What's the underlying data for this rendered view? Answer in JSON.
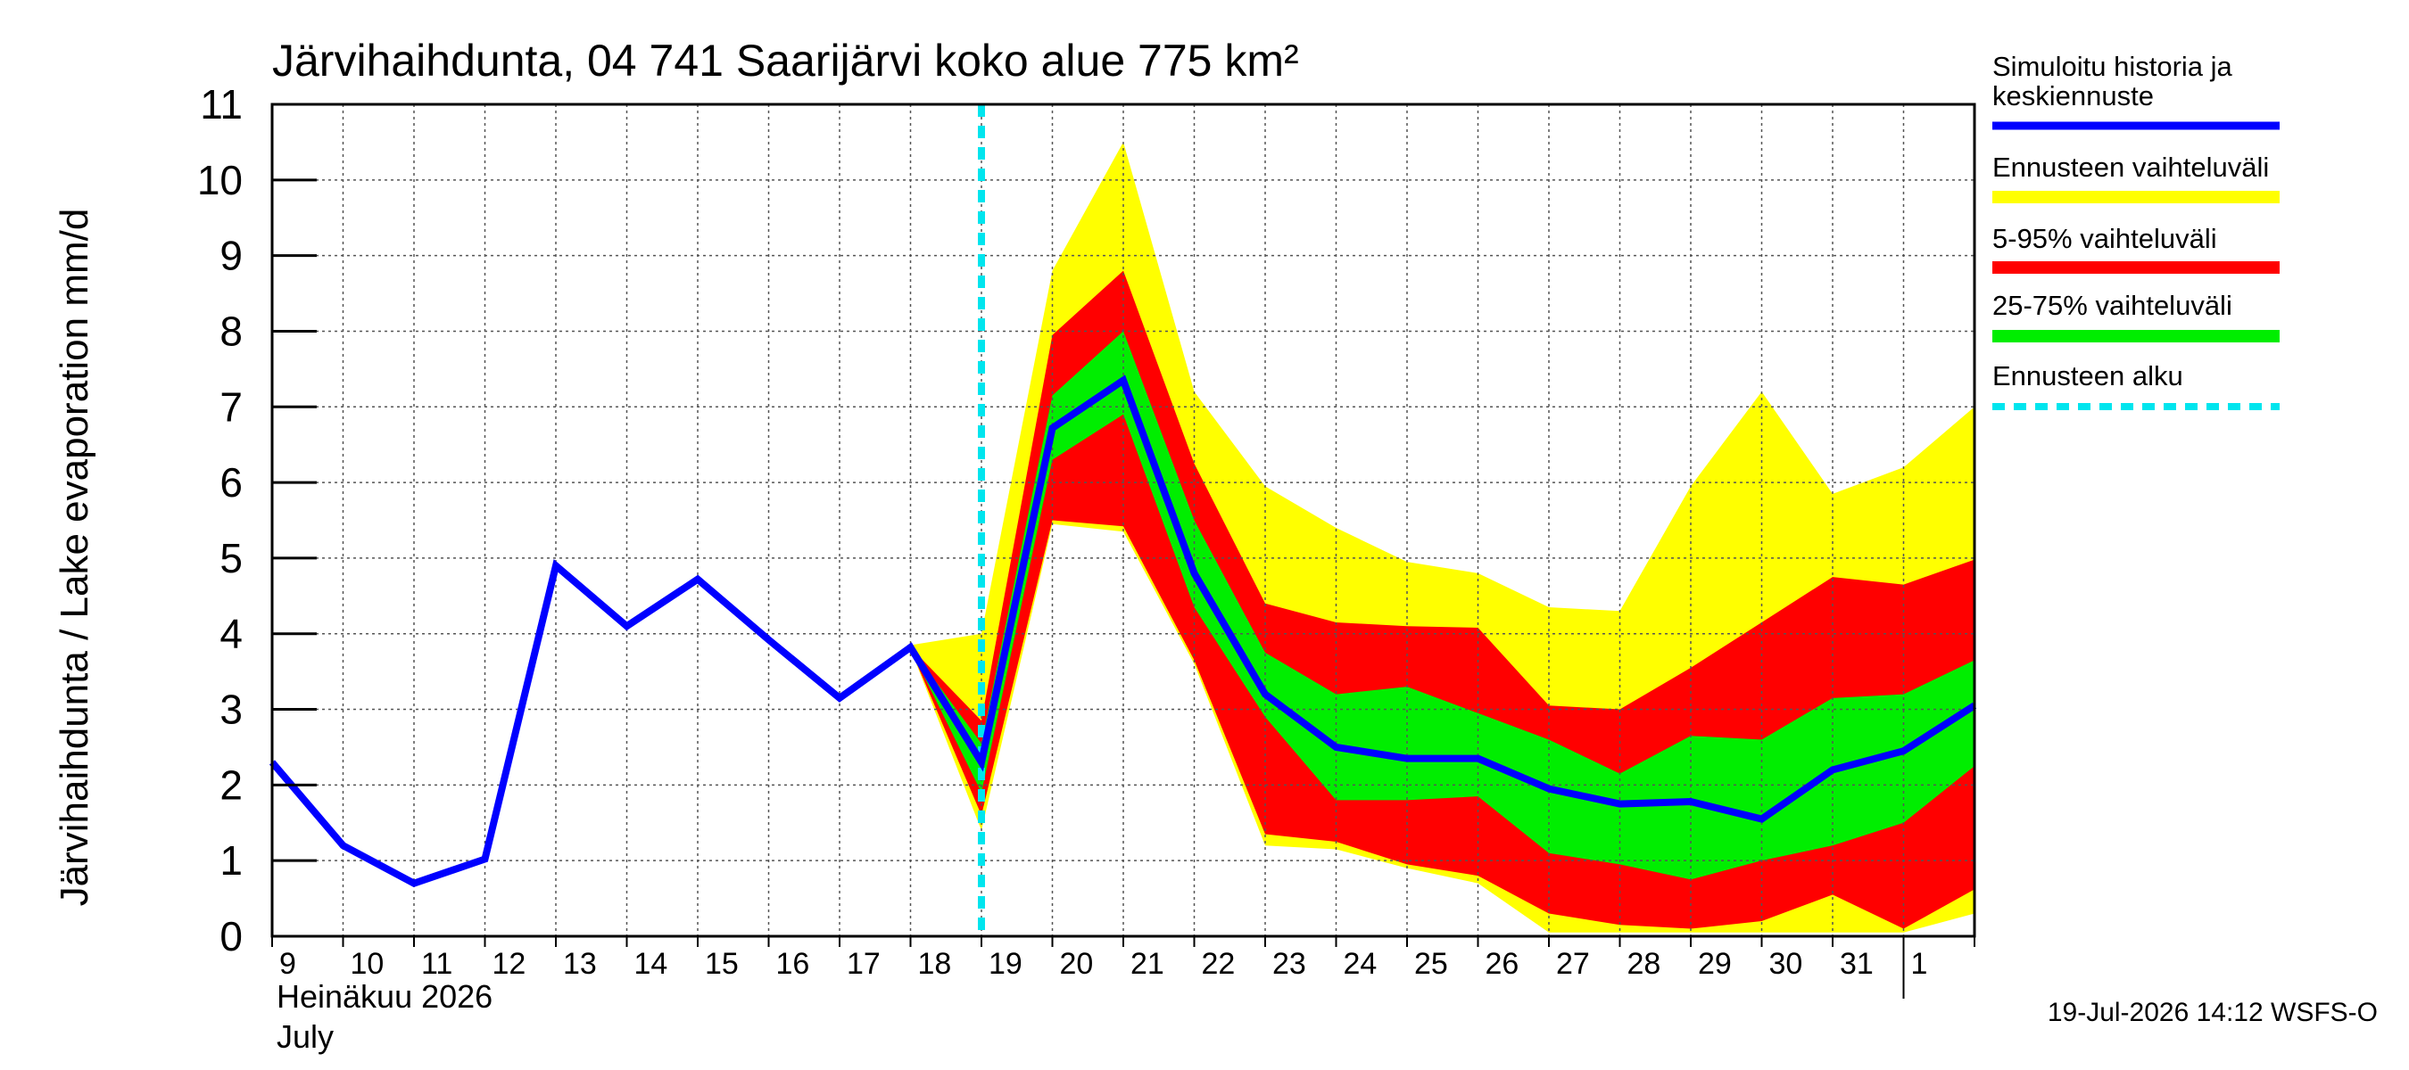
{
  "chart_data": {
    "type": "area",
    "title": "Järvihaihdunta, 04 741 Saarijärvi koko alue 775 km²",
    "ylabel": "Järvihaihdunta / Lake evaporation   mm/d",
    "ylim": [
      0,
      11
    ],
    "yticks": [
      0,
      1,
      2,
      3,
      4,
      5,
      6,
      7,
      8,
      9,
      10,
      11
    ],
    "x_day_range": [
      9,
      33
    ],
    "x_tick_labels": [
      "9",
      "10",
      "11",
      "12",
      "13",
      "14",
      "15",
      "16",
      "17",
      "18",
      "19",
      "20",
      "21",
      "22",
      "23",
      "24",
      "25",
      "26",
      "27",
      "28",
      "29",
      "30",
      "31",
      "1"
    ],
    "month_label_fi": "Heinäkuu  2026",
    "month_label_en": "July",
    "forecast_start_day": 19,
    "grid": true,
    "legend_placement": "right",
    "legend": [
      {
        "label_line1": "Simuloitu historia ja",
        "label_line2": "keskiennuste",
        "color": "#0000ff",
        "style": "solid"
      },
      {
        "label_line1": "Ennusteen vaihteluväli",
        "color": "#ffff00",
        "style": "band"
      },
      {
        "label_line1": "5-95% vaihteluväli",
        "color": "#ff0000",
        "style": "band"
      },
      {
        "label_line1": "25-75% vaihteluväli",
        "color": "#00ff00",
        "style": "band"
      },
      {
        "label_line1": "Ennusteen alku",
        "color": "#00e5ee",
        "style": "dashed"
      }
    ],
    "series": {
      "median": {
        "x": [
          9,
          10,
          11,
          12,
          13,
          14,
          15,
          16,
          17,
          18,
          19,
          20,
          21,
          22,
          23,
          24,
          25,
          26,
          27,
          28,
          29,
          30,
          31,
          32,
          33
        ],
        "y": [
          2.3,
          1.2,
          0.7,
          1.02,
          4.9,
          4.1,
          4.72,
          3.92,
          3.15,
          3.82,
          2.3,
          6.72,
          7.35,
          4.8,
          3.2,
          2.5,
          2.35,
          2.35,
          1.95,
          1.75,
          1.78,
          1.55,
          2.2,
          2.45,
          3.05
        ]
      },
      "full_range": {
        "x": [
          18,
          19,
          20,
          21,
          22,
          23,
          24,
          25,
          26,
          27,
          28,
          29,
          30,
          31,
          32,
          33
        ],
        "upper": [
          3.85,
          4.0,
          8.8,
          10.5,
          7.2,
          5.95,
          5.4,
          4.95,
          4.8,
          4.35,
          4.3,
          5.95,
          7.2,
          5.85,
          6.2,
          7.0
        ],
        "lower": [
          3.8,
          1.4,
          5.45,
          5.35,
          3.6,
          1.2,
          1.15,
          0.9,
          0.7,
          0.05,
          0.05,
          0.05,
          0.05,
          0.05,
          0.05,
          0.3
        ]
      },
      "p5_95": {
        "x": [
          18,
          19,
          20,
          21,
          22,
          23,
          24,
          25,
          26,
          27,
          28,
          29,
          30,
          31,
          32,
          33
        ],
        "upper": [
          3.82,
          2.85,
          7.95,
          8.8,
          6.25,
          4.4,
          4.15,
          4.1,
          4.08,
          3.05,
          3.0,
          3.55,
          4.15,
          4.75,
          4.65,
          4.98
        ],
        "lower": [
          3.8,
          1.6,
          5.5,
          5.42,
          3.65,
          1.35,
          1.25,
          0.95,
          0.8,
          0.3,
          0.15,
          0.1,
          0.2,
          0.55,
          0.1,
          0.62
        ]
      },
      "p25_75": {
        "x": [
          18,
          19,
          20,
          21,
          22,
          23,
          24,
          25,
          26,
          27,
          28,
          29,
          30,
          31,
          32,
          33
        ],
        "upper": [
          3.82,
          2.55,
          7.15,
          8.0,
          5.5,
          3.75,
          3.2,
          3.3,
          2.95,
          2.6,
          2.15,
          2.65,
          2.6,
          3.15,
          3.2,
          3.65
        ],
        "lower": [
          3.8,
          1.9,
          6.3,
          6.9,
          4.35,
          2.9,
          1.8,
          1.8,
          1.85,
          1.1,
          0.95,
          0.75,
          1.0,
          1.2,
          1.5,
          2.25
        ]
      }
    },
    "footer": "19-Jul-2026 14:12 WSFS-O"
  }
}
